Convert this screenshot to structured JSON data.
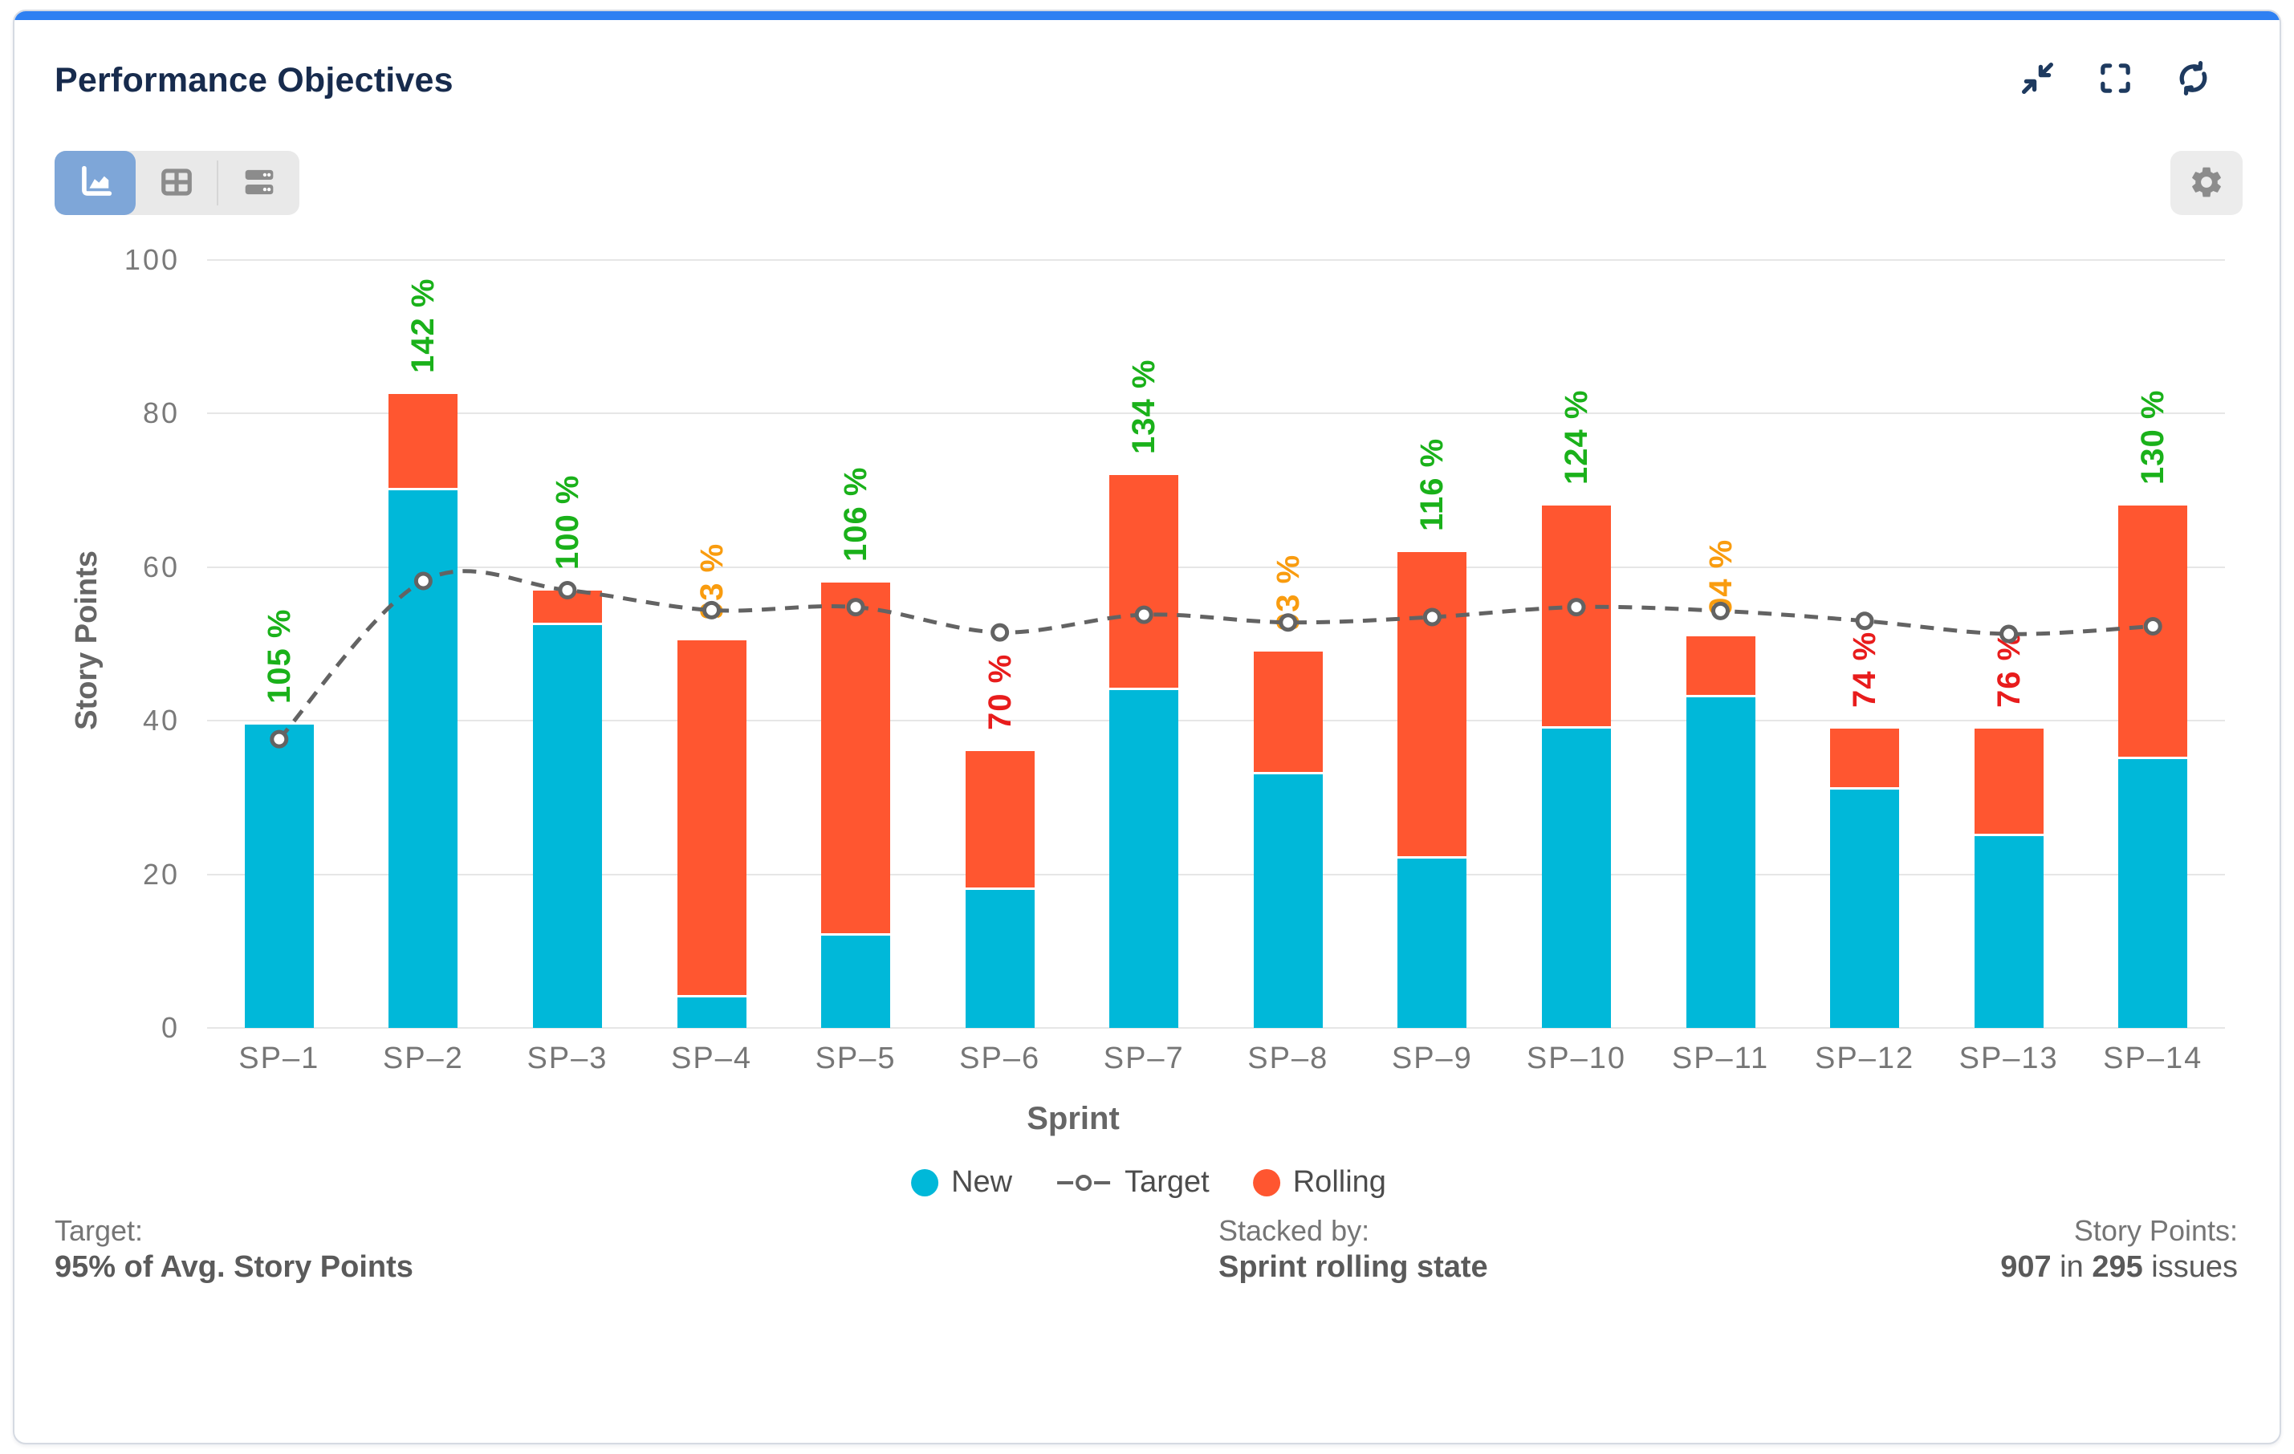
{
  "header": {
    "title": "Performance Objectives"
  },
  "toolbar": {
    "views": [
      "chart-view",
      "table-view",
      "data-view"
    ],
    "active_view": "chart-view"
  },
  "colors": {
    "accent_blue": "#2e80f2",
    "title_navy": "#172b4d",
    "icon_navy": "#1e3a5f",
    "new_bar": "#00b8d9",
    "rolling_bar": "#ff5630",
    "target_line": "#636363",
    "grid": "#e6e6e6",
    "green": "#1ab11a",
    "amber": "#f99c0f",
    "red": "#e81c1c",
    "active_button_bg": "#7ea6d8"
  },
  "chart_data": {
    "type": "bar",
    "subtype": "stacked-bars-with-target-line",
    "title": "Performance Objectives",
    "categories": [
      "SP–1",
      "SP–2",
      "SP–3",
      "SP–4",
      "SP–5",
      "SP–6",
      "SP–7",
      "SP–8",
      "SP–9",
      "SP–10",
      "SP–11",
      "SP–12",
      "SP–13",
      "SP–14"
    ],
    "series": [
      {
        "name": "New",
        "color": "#00b8d9",
        "values": [
          39.5,
          70,
          52.5,
          4,
          12,
          18,
          44,
          33,
          22,
          39,
          43,
          31,
          25,
          35
        ]
      },
      {
        "name": "Rolling",
        "color": "#ff5630",
        "values": [
          0,
          12.5,
          4.5,
          46.5,
          46,
          18,
          28,
          16,
          40,
          29,
          8,
          8,
          14,
          33
        ]
      }
    ],
    "totals": [
      39.5,
      82.5,
      57,
      50.5,
      58,
      36,
      72,
      49,
      62,
      68,
      51,
      39,
      39,
      68
    ],
    "target": {
      "name": "Target",
      "values": [
        37.6,
        58.2,
        57.0,
        54.4,
        54.8,
        51.5,
        53.8,
        52.8,
        53.5,
        54.8,
        54.3,
        53.0,
        51.3,
        52.3
      ]
    },
    "percent_labels": [
      {
        "text": "105 %",
        "status": "green"
      },
      {
        "text": "142 %",
        "status": "green"
      },
      {
        "text": "100 %",
        "status": "green"
      },
      {
        "text": "93 %",
        "status": "amber"
      },
      {
        "text": "106 %",
        "status": "green"
      },
      {
        "text": "70 %",
        "status": "red"
      },
      {
        "text": "134 %",
        "status": "green"
      },
      {
        "text": "93 %",
        "status": "amber"
      },
      {
        "text": "116 %",
        "status": "green"
      },
      {
        "text": "124 %",
        "status": "green"
      },
      {
        "text": "94 %",
        "status": "amber"
      },
      {
        "text": "74 %",
        "status": "red"
      },
      {
        "text": "76 %",
        "status": "red"
      },
      {
        "text": "130 %",
        "status": "green"
      }
    ],
    "xlabel": "Sprint",
    "ylabel": "Story Points",
    "ylim": [
      0,
      100
    ],
    "yticks": [
      0,
      20,
      40,
      60,
      80,
      100
    ],
    "grid": true,
    "legend_position": "bottom",
    "legend": [
      {
        "label": "New",
        "swatch": "dot",
        "color": "#00b8d9"
      },
      {
        "label": "Target",
        "swatch": "dash-circle",
        "color": "#636363"
      },
      {
        "label": "Rolling",
        "swatch": "dot",
        "color": "#ff5630"
      }
    ]
  },
  "footer": {
    "target_label": "Target:",
    "target_value": "95% of Avg. Story Points",
    "stacked_label": "Stacked by:",
    "stacked_value": "Sprint rolling state",
    "points_label": "Story Points:",
    "points_bold_1": "907",
    "points_mid": " in ",
    "points_bold_2": "295",
    "points_tail": " issues"
  }
}
